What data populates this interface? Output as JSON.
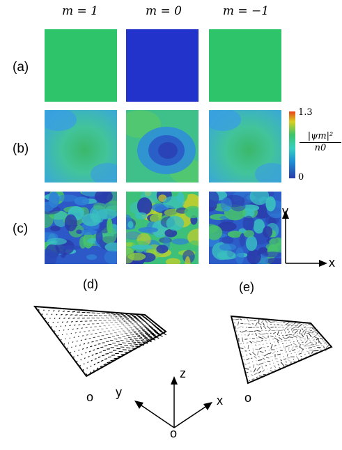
{
  "columns": [
    "m = 1",
    "m = 0",
    "m = −1"
  ],
  "rows": [
    "(a)",
    "(b)",
    "(c)"
  ],
  "colorbar": {
    "max_label": "1.3",
    "min_label": "0",
    "quantity": "|ψm|²",
    "denominator": "n0",
    "colors": [
      "#2a3aa8",
      "#1d8fd4",
      "#36d0c0",
      "#3cc46a",
      "#d8d020",
      "#e8401a"
    ]
  },
  "axes_2d": {
    "x": "x",
    "y": "y"
  },
  "panels_3d": {
    "left_label": "(d)",
    "right_label": "(e)",
    "origin_left": "o",
    "origin_right": "o"
  },
  "axes_3d": {
    "x": "x",
    "y": "y",
    "z": "z",
    "origin": "o"
  },
  "colors": {
    "uniform_green": "#2ec46a",
    "uniform_blue": "#2233cc"
  }
}
